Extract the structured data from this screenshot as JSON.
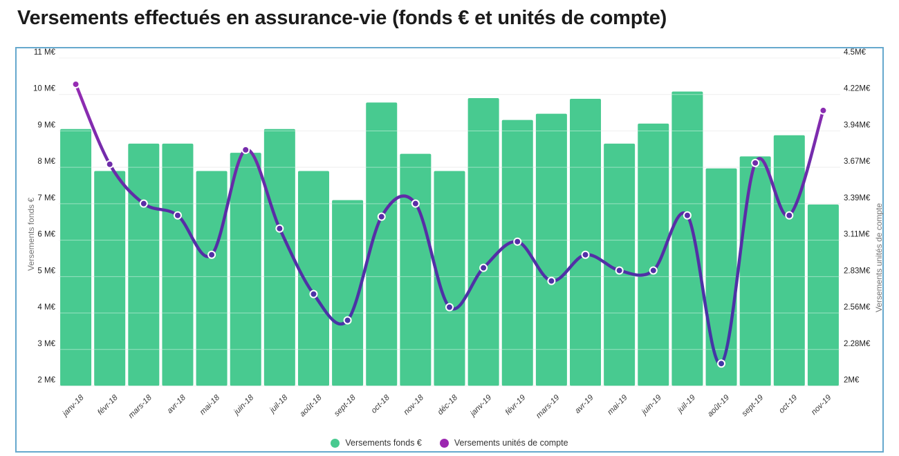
{
  "page": {
    "title": "Versements effectués en assurance-vie (fonds € et unités de compte)"
  },
  "chart_data": {
    "type": "bar",
    "subtype": "combo-bar-line-dual-axis",
    "categories": [
      "janv-18",
      "févr-18",
      "mars-18",
      "avr-18",
      "mai-18",
      "juin-18",
      "juil-18",
      "août-18",
      "sept-18",
      "oct-18",
      "nov-18",
      "déc-18",
      "janv-19",
      "févr-19",
      "mars-19",
      "avr-19",
      "mai-19",
      "juin-19",
      "juil-19",
      "août-19",
      "sept-19",
      "oct-19",
      "nov-19"
    ],
    "series": [
      {
        "name": "Versements fonds €",
        "type": "bar",
        "axis": "left",
        "unit": "M€",
        "color": "#48ca90",
        "values": [
          9.05,
          7.9,
          8.65,
          8.65,
          7.9,
          8.4,
          9.05,
          7.9,
          7.1,
          9.78,
          8.37,
          7.9,
          9.9,
          9.3,
          9.47,
          9.88,
          8.65,
          9.2,
          10.08,
          7.97,
          8.3,
          8.88,
          6.98
        ]
      },
      {
        "name": "Versements unités de compte",
        "type": "line",
        "axis": "right",
        "unit": "M€",
        "color_top": "#a32cb6",
        "color_mid": "#5b2ca6",
        "color_bottom": "#3e38a6",
        "legend_color": "#9c27b0",
        "values": [
          4.3,
          3.69,
          3.39,
          3.3,
          3.0,
          3.8,
          3.2,
          2.7,
          2.5,
          3.29,
          3.39,
          2.6,
          2.9,
          3.1,
          2.8,
          3.0,
          2.88,
          2.88,
          3.3,
          2.17,
          3.7,
          3.3,
          4.1
        ]
      }
    ],
    "left_axis": {
      "title": "Versements fonds €",
      "min": 2,
      "max": 11,
      "tick_labels": [
        "11 M€",
        "10 M€",
        "9 M€",
        "8 M€",
        "7 M€",
        "6 M€",
        "5 M€",
        "4 M€",
        "3 M€",
        "2 M€"
      ]
    },
    "right_axis": {
      "title": "Versements unités de compte",
      "min": 2,
      "max": 4.5,
      "tick_labels": [
        "4.5M€",
        "4.22M€",
        "3.94M€",
        "3.67M€",
        "3.39M€",
        "3.11M€",
        "2.83M€",
        "2.56M€",
        "2.28M€",
        "2M€"
      ]
    },
    "grid": true,
    "legend_position": "bottom-center",
    "title": "Versements effectués en assurance-vie (fonds € et unités de compte)"
  }
}
